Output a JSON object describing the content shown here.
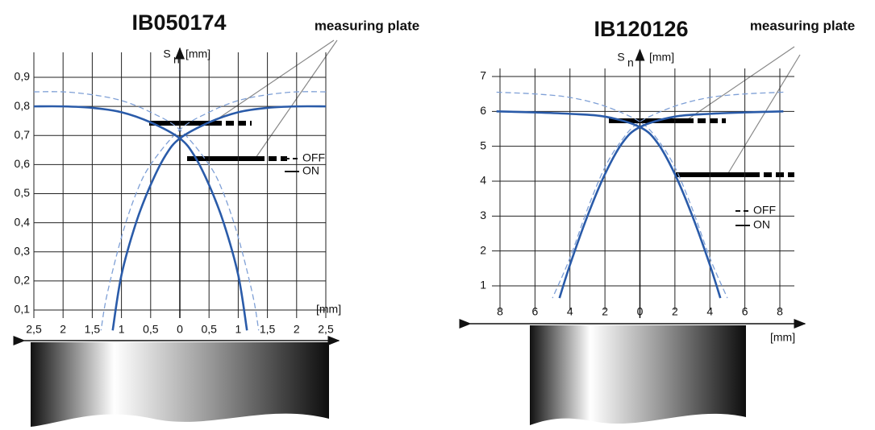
{
  "chart_data": [
    {
      "type": "line",
      "title": "IB050174",
      "annotation": "measuring plate",
      "y_label": "S",
      "y_label_sub": "n",
      "y_unit": "[mm]",
      "x_unit": "[mm]",
      "xlim": [
        -2.5,
        2.5
      ],
      "ylim": [
        0.1,
        0.9
      ],
      "grid": true,
      "xticks": [
        {
          "value": -2.5,
          "label": "2,5"
        },
        {
          "value": -2,
          "label": "2"
        },
        {
          "value": -1.5,
          "label": "1,5"
        },
        {
          "value": -1,
          "label": "1"
        },
        {
          "value": -0.5,
          "label": "0,5"
        },
        0,
        {
          "value": 0.5,
          "label": "0,5"
        },
        1,
        {
          "value": 1.5,
          "label": "1,5"
        },
        2,
        {
          "value": 2.5,
          "label": "2,5"
        }
      ],
      "yticks": [
        {
          "value": 0.1,
          "label": "0,1"
        },
        {
          "value": 0.2,
          "label": "0,2"
        },
        {
          "value": 0.3,
          "label": "0,3"
        },
        {
          "value": 0.4,
          "label": "0,4"
        },
        {
          "value": 0.5,
          "label": "0,5"
        },
        {
          "value": 0.6,
          "label": "0,6"
        },
        {
          "value": 0.7,
          "label": "0,7"
        },
        {
          "value": 0.8,
          "label": "0,8"
        },
        {
          "value": 0.9,
          "label": "0,9"
        }
      ],
      "series": [
        {
          "name": "OFF",
          "color": "#7fa0d6",
          "dashed": true,
          "x": [
            -2.5,
            -2,
            -1.5,
            -1,
            -0.5,
            0,
            0.5,
            0.75,
            1,
            1.25,
            1.35
          ],
          "values": [
            0.85,
            0.85,
            0.84,
            0.82,
            0.78,
            0.72,
            0.6,
            0.5,
            0.35,
            0.15,
            0.03
          ]
        },
        {
          "name": "OFF",
          "color": "#7fa0d6",
          "dashed": true,
          "x": [
            2.5,
            2,
            1.5,
            1,
            0.5,
            0,
            -0.5,
            -0.75,
            -1,
            -1.25,
            -1.35
          ],
          "values": [
            0.85,
            0.85,
            0.84,
            0.82,
            0.78,
            0.72,
            0.6,
            0.5,
            0.35,
            0.15,
            0.03
          ]
        },
        {
          "name": "ON",
          "color": "#2a5ba9",
          "dashed": false,
          "x": [
            -2.5,
            -2,
            -1.5,
            -1,
            -0.5,
            0,
            0.25,
            0.5,
            0.75,
            1,
            1.15
          ],
          "values": [
            0.8,
            0.8,
            0.795,
            0.78,
            0.745,
            0.69,
            0.63,
            0.53,
            0.4,
            0.22,
            0.03
          ]
        },
        {
          "name": "ON",
          "color": "#2a5ba9",
          "dashed": false,
          "x": [
            2.5,
            2,
            1.5,
            1,
            0.5,
            0,
            -0.25,
            -0.5,
            -0.75,
            -1,
            -1.15
          ],
          "values": [
            0.8,
            0.8,
            0.795,
            0.78,
            0.745,
            0.69,
            0.63,
            0.53,
            0.4,
            0.22,
            0.03
          ]
        }
      ]
    },
    {
      "type": "line",
      "title": "IB120126",
      "annotation": "measuring plate",
      "y_label": "S",
      "y_label_sub": "n",
      "y_unit": "[mm]",
      "x_unit": "[mm]",
      "xlim": [
        -8,
        8
      ],
      "ylim": [
        1,
        7
      ],
      "grid": true,
      "xticks": [
        {
          "value": -8,
          "label": "8"
        },
        {
          "value": -6,
          "label": "6"
        },
        {
          "value": -4,
          "label": "4"
        },
        {
          "value": -2,
          "label": "2"
        },
        0,
        2,
        4,
        6,
        8
      ],
      "yticks": [
        1,
        2,
        3,
        4,
        5,
        6,
        7
      ],
      "series": [
        {
          "name": "OFF",
          "color": "#7fa0d6",
          "dashed": true,
          "x": [
            -8.2,
            -6,
            -4,
            -2,
            0,
            1,
            2,
            3,
            4,
            5
          ],
          "values": [
            6.55,
            6.5,
            6.4,
            6.15,
            5.7,
            5.2,
            4.4,
            3.2,
            1.8,
            0.65
          ]
        },
        {
          "name": "OFF",
          "color": "#7fa0d6",
          "dashed": true,
          "x": [
            8.2,
            6,
            4,
            2,
            0,
            -1,
            -2,
            -3,
            -4,
            -5
          ],
          "values": [
            6.55,
            6.5,
            6.4,
            6.15,
            5.7,
            5.2,
            4.4,
            3.2,
            1.8,
            0.65
          ]
        },
        {
          "name": "ON",
          "color": "#2a5ba9",
          "dashed": false,
          "x": [
            -8.2,
            -6,
            -4,
            -2,
            0,
            1,
            2,
            3,
            4,
            4.6
          ],
          "values": [
            6,
            5.97,
            5.93,
            5.85,
            5.55,
            5.1,
            4.2,
            3,
            1.6,
            0.65
          ]
        },
        {
          "name": "ON",
          "color": "#2a5ba9",
          "dashed": false,
          "x": [
            8.2,
            6,
            4,
            2,
            0,
            -1,
            -2,
            -3,
            -4,
            -4.6
          ],
          "values": [
            6,
            5.97,
            5.93,
            5.85,
            5.55,
            5.1,
            4.2,
            3,
            1.6,
            0.65
          ]
        }
      ]
    }
  ]
}
